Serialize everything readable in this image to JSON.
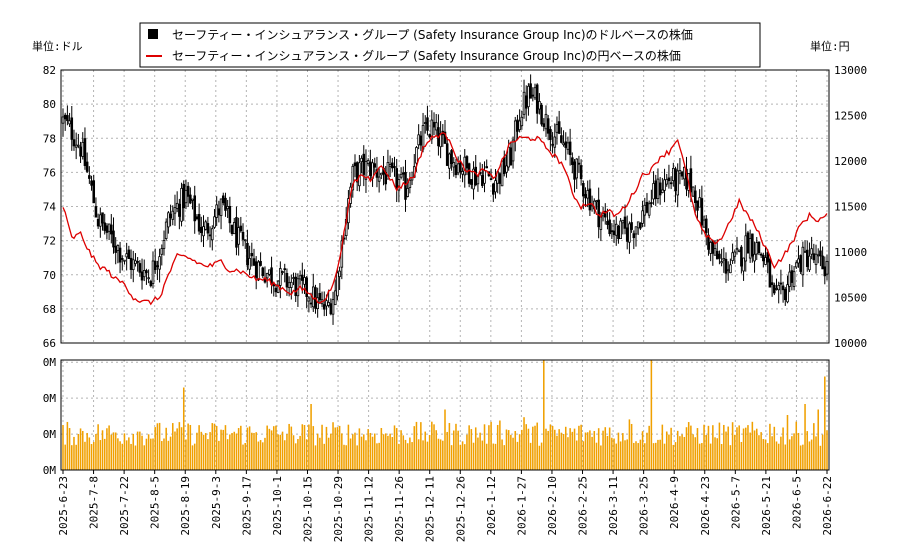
{
  "legend": {
    "usd_label": "セーフティー・インシュアランス・グループ (Safety Insurance Group Inc)のドルベースの株価",
    "jpy_label": "セーフティー・インシュアランス・グループ (Safety Insurance Group Inc)の円ベースの株価"
  },
  "units": {
    "left": "単位:ドル",
    "right": "単位:円"
  },
  "colors": {
    "candle": "#000000",
    "jpy_line": "#dd0000",
    "volume": "#f0a000",
    "grid": "#b4b4b4"
  },
  "chart_data": [
    {
      "type": "candlestick",
      "title": "",
      "y_left": {
        "ylim": [
          66,
          82
        ],
        "ticks": [
          66,
          68,
          70,
          72,
          74,
          76,
          78,
          80,
          82
        ]
      },
      "y_right": {
        "ylim": [
          10000,
          13000
        ],
        "ticks": [
          10000,
          10500,
          11000,
          11500,
          12000,
          12500,
          13000
        ]
      },
      "x_ticks": [
        "2025-6-23",
        "2025-7-8",
        "2025-7-22",
        "2025-8-5",
        "2025-8-19",
        "2025-9-3",
        "2025-9-17",
        "2025-10-1",
        "2025-10-15",
        "2025-10-29",
        "2025-11-12",
        "2025-11-26",
        "2025-12-11",
        "2025-12-26",
        "2026-1-12",
        "2026-1-27",
        "2026-2-10",
        "2026-2-25",
        "2026-3-11",
        "2026-3-25",
        "2026-4-9",
        "2026-4-23",
        "2026-5-7",
        "2026-5-21",
        "2026-6-5",
        "2026-6-22"
      ],
      "grid": true,
      "legend_position": "top-center",
      "series": [
        {
          "name": "セーフティー・インシュアランス・グループ (Safety Insurance Group Inc)のドルベースの株価",
          "close_anchors": [
            [
              0,
              79.0
            ],
            [
              4,
              78.4
            ],
            [
              8,
              77.5
            ],
            [
              12,
              75.5
            ],
            [
              16,
              73.2
            ],
            [
              20,
              72.5
            ],
            [
              24,
              71.8
            ],
            [
              28,
              71.0
            ],
            [
              32,
              70.6
            ],
            [
              36,
              70.3
            ],
            [
              40,
              70.0
            ],
            [
              44,
              71.5
            ],
            [
              48,
              73.2
            ],
            [
              52,
              74.0
            ],
            [
              56,
              74.6
            ],
            [
              60,
              73.5
            ],
            [
              64,
              72.5
            ],
            [
              68,
              73.2
            ],
            [
              72,
              74.0
            ],
            [
              76,
              73.0
            ],
            [
              80,
              72.0
            ],
            [
              84,
              71.2
            ],
            [
              88,
              70.6
            ],
            [
              92,
              70.2
            ],
            [
              96,
              69.8
            ],
            [
              100,
              69.7
            ],
            [
              104,
              69.5
            ],
            [
              108,
              69.2
            ],
            [
              112,
              69.0
            ],
            [
              116,
              68.3
            ],
            [
              120,
              68.0
            ],
            [
              124,
              69.0
            ],
            [
              128,
              72.8
            ],
            [
              132,
              75.8
            ],
            [
              136,
              76.2
            ],
            [
              140,
              76.3
            ],
            [
              144,
              76.0
            ],
            [
              148,
              75.8
            ],
            [
              152,
              75.5
            ],
            [
              156,
              75.0
            ],
            [
              160,
              76.8
            ],
            [
              164,
              78.2
            ],
            [
              168,
              78.6
            ],
            [
              172,
              77.8
            ],
            [
              176,
              77.0
            ],
            [
              180,
              76.5
            ],
            [
              184,
              76.2
            ],
            [
              188,
              75.8
            ],
            [
              192,
              76.0
            ],
            [
              196,
              75.5
            ],
            [
              200,
              76.0
            ],
            [
              204,
              77.0
            ],
            [
              208,
              79.5
            ],
            [
              212,
              80.5
            ],
            [
              216,
              80.2
            ],
            [
              220,
              79.0
            ],
            [
              224,
              78.2
            ],
            [
              228,
              77.6
            ],
            [
              232,
              76.6
            ],
            [
              236,
              75.5
            ],
            [
              240,
              74.5
            ],
            [
              244,
              73.6
            ],
            [
              248,
              73.0
            ],
            [
              252,
              72.5
            ],
            [
              256,
              72.5
            ],
            [
              260,
              72.8
            ],
            [
              264,
              73.6
            ],
            [
              268,
              74.4
            ],
            [
              272,
              75.2
            ],
            [
              276,
              75.6
            ],
            [
              280,
              75.4
            ],
            [
              284,
              75.6
            ],
            [
              288,
              74.9
            ],
            [
              292,
              72.8
            ],
            [
              296,
              71.2
            ],
            [
              300,
              70.6
            ],
            [
              304,
              70.6
            ],
            [
              308,
              71.0
            ],
            [
              312,
              72.0
            ],
            [
              316,
              71.6
            ],
            [
              320,
              70.8
            ],
            [
              324,
              68.4
            ],
            [
              328,
              68.8
            ],
            [
              332,
              70.2
            ],
            [
              336,
              70.8
            ],
            [
              340,
              71.2
            ],
            [
              344,
              70.6
            ],
            [
              348,
              70.5
            ]
          ]
        },
        {
          "name": "セーフティー・インシュアランス・グループ (Safety Insurance Group Inc)の円ベースの株価",
          "close_anchors": [
            [
              0,
              11500
            ],
            [
              4,
              11150
            ],
            [
              8,
              11200
            ],
            [
              12,
              11000
            ],
            [
              16,
              10850
            ],
            [
              20,
              10800
            ],
            [
              24,
              10700
            ],
            [
              28,
              10650
            ],
            [
              32,
              10500
            ],
            [
              36,
              10450
            ],
            [
              40,
              10450
            ],
            [
              44,
              10500
            ],
            [
              48,
              10750
            ],
            [
              52,
              10950
            ],
            [
              56,
              10950
            ],
            [
              60,
              10900
            ],
            [
              64,
              10850
            ],
            [
              68,
              10850
            ],
            [
              72,
              10900
            ],
            [
              76,
              10800
            ],
            [
              80,
              10800
            ],
            [
              84,
              10750
            ],
            [
              88,
              10700
            ],
            [
              92,
              10700
            ],
            [
              96,
              10650
            ],
            [
              100,
              10600
            ],
            [
              104,
              10550
            ],
            [
              108,
              10600
            ],
            [
              112,
              10550
            ],
            [
              116,
              10450
            ],
            [
              120,
              10500
            ],
            [
              124,
              10700
            ],
            [
              128,
              11200
            ],
            [
              132,
              11750
            ],
            [
              136,
              11850
            ],
            [
              140,
              11800
            ],
            [
              144,
              11950
            ],
            [
              148,
              11850
            ],
            [
              152,
              11700
            ],
            [
              156,
              11750
            ],
            [
              160,
              11850
            ],
            [
              164,
              12150
            ],
            [
              168,
              12250
            ],
            [
              172,
              12300
            ],
            [
              176,
              12250
            ],
            [
              180,
              12000
            ],
            [
              184,
              11900
            ],
            [
              188,
              11850
            ],
            [
              192,
              11900
            ],
            [
              196,
              11800
            ],
            [
              200,
              12000
            ],
            [
              204,
              12200
            ],
            [
              208,
              12250
            ],
            [
              212,
              12250
            ],
            [
              216,
              12250
            ],
            [
              220,
              12150
            ],
            [
              224,
              12050
            ],
            [
              228,
              11950
            ],
            [
              232,
              11650
            ],
            [
              236,
              11500
            ],
            [
              240,
              11550
            ],
            [
              244,
              11400
            ],
            [
              248,
              11450
            ],
            [
              252,
              11400
            ],
            [
              256,
              11500
            ],
            [
              260,
              11650
            ],
            [
              264,
              11850
            ],
            [
              268,
              11900
            ],
            [
              272,
              12050
            ],
            [
              276,
              12100
            ],
            [
              280,
              12250
            ],
            [
              284,
              11850
            ],
            [
              288,
              11400
            ],
            [
              292,
              11200
            ],
            [
              296,
              11100
            ],
            [
              300,
              11150
            ],
            [
              304,
              11350
            ],
            [
              308,
              11550
            ],
            [
              312,
              11400
            ],
            [
              316,
              11250
            ],
            [
              320,
              11050
            ],
            [
              324,
              10850
            ],
            [
              328,
              10950
            ],
            [
              332,
              11100
            ],
            [
              336,
              11300
            ],
            [
              340,
              11400
            ],
            [
              344,
              11350
            ],
            [
              348,
              11400
            ]
          ]
        }
      ],
      "candle_count": 349
    },
    {
      "type": "bar",
      "title": "",
      "ylabel_ticks": [
        "0M",
        "0M",
        "0M",
        "0M"
      ],
      "series": [
        {
          "name": "",
          "values_relative": "varying daily volume, typically 0.3-0.4 of max with spikes up to 1.0 near 2026-1-31 and 2026-3-22"
        }
      ]
    }
  ]
}
